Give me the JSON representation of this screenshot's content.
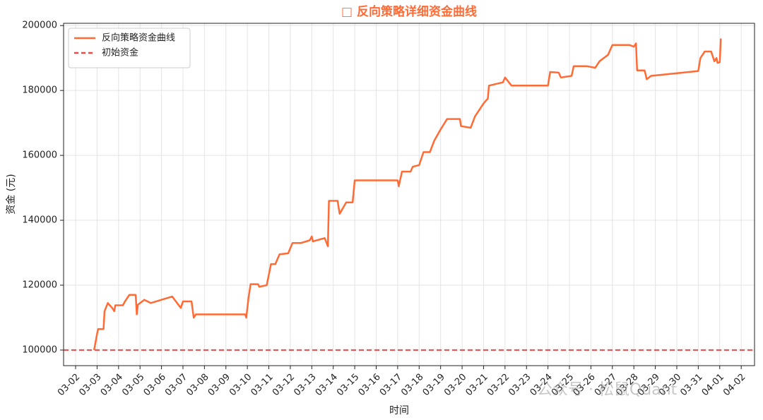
{
  "chart_data": {
    "type": "line",
    "title": "□ 反向策略详细资金曲线",
    "x_label": "时间",
    "y_label": "资金 (元)",
    "watermark": "公众号 · 松鼠Quant",
    "grid": true,
    "legend": "upper left",
    "xlim": [
      1.44,
      33.62
    ],
    "ylim": [
      95200,
      200700
    ],
    "yticks": [
      100000,
      120000,
      140000,
      160000,
      180000,
      200000
    ],
    "xticks": [
      {
        "value": 2,
        "label": "03-02"
      },
      {
        "value": 3,
        "label": "03-03"
      },
      {
        "value": 4,
        "label": "03-04"
      },
      {
        "value": 5,
        "label": "03-05"
      },
      {
        "value": 6,
        "label": "03-06"
      },
      {
        "value": 7,
        "label": "03-07"
      },
      {
        "value": 8,
        "label": "03-08"
      },
      {
        "value": 9,
        "label": "03-09"
      },
      {
        "value": 10,
        "label": "03-10"
      },
      {
        "value": 11,
        "label": "03-11"
      },
      {
        "value": 12,
        "label": "03-12"
      },
      {
        "value": 13,
        "label": "03-13"
      },
      {
        "value": 14,
        "label": "03-14"
      },
      {
        "value": 15,
        "label": "03-15"
      },
      {
        "value": 16,
        "label": "03-16"
      },
      {
        "value": 17,
        "label": "03-17"
      },
      {
        "value": 18,
        "label": "03-18"
      },
      {
        "value": 19,
        "label": "03-19"
      },
      {
        "value": 20,
        "label": "03-20"
      },
      {
        "value": 21,
        "label": "03-21"
      },
      {
        "value": 22,
        "label": "03-22"
      },
      {
        "value": 23,
        "label": "03-23"
      },
      {
        "value": 24,
        "label": "03-24"
      },
      {
        "value": 25,
        "label": "03-25"
      },
      {
        "value": 26,
        "label": "03-26"
      },
      {
        "value": 27,
        "label": "03-27"
      },
      {
        "value": 28,
        "label": "03-28"
      },
      {
        "value": 29,
        "label": "03-29"
      },
      {
        "value": 30,
        "label": "03-30"
      },
      {
        "value": 31,
        "label": "03-31"
      },
      {
        "value": 32,
        "label": "04-01"
      },
      {
        "value": 33,
        "label": "04-02"
      }
    ],
    "series": [
      {
        "name": "反向策略资金曲线",
        "color": "#ff6b35",
        "x": [
          2.86,
          3.0,
          3.05,
          3.3,
          3.35,
          3.5,
          3.7,
          3.8,
          3.85,
          4.2,
          4.3,
          4.5,
          4.8,
          4.85,
          4.9,
          5.2,
          5.5,
          6.0,
          6.5,
          6.9,
          7.0,
          7.4,
          7.5,
          7.6,
          9.9,
          9.95,
          10.05,
          10.15,
          10.5,
          10.55,
          10.9,
          11.1,
          11.3,
          11.5,
          11.9,
          12.1,
          12.5,
          12.9,
          13.0,
          13.05,
          13.6,
          13.75,
          13.8,
          14.2,
          14.3,
          14.6,
          14.9,
          15.0,
          17.0,
          17.05,
          17.2,
          17.6,
          17.7,
          18.0,
          18.2,
          18.5,
          18.7,
          19.0,
          19.3,
          19.9,
          19.95,
          20.4,
          20.6,
          21.0,
          21.2,
          21.25,
          21.9,
          22.0,
          22.3,
          24.0,
          24.1,
          24.5,
          24.6,
          25.1,
          25.2,
          25.8,
          26.2,
          26.4,
          26.8,
          27.0,
          27.8,
          28.0,
          28.1,
          28.15,
          28.5,
          28.6,
          28.8,
          31.0,
          31.1,
          31.3,
          31.6,
          31.75,
          31.85,
          31.9,
          32.0,
          32.05
        ],
        "values": [
          100000,
          105000,
          106500,
          106500,
          112000,
          114500,
          113000,
          112000,
          113800,
          113800,
          115000,
          117000,
          117000,
          111000,
          114000,
          115500,
          114500,
          115500,
          116500,
          113000,
          115000,
          115000,
          110000,
          111000,
          111000,
          110000,
          116000,
          120300,
          120300,
          119500,
          120000,
          126500,
          126500,
          129500,
          129800,
          133000,
          133000,
          133800,
          135000,
          133500,
          134500,
          132000,
          146000,
          146000,
          142000,
          145500,
          145500,
          152300,
          152300,
          150500,
          155000,
          155000,
          156500,
          157000,
          161000,
          161000,
          164500,
          168000,
          171200,
          171200,
          169000,
          168500,
          172000,
          176000,
          177500,
          181500,
          182500,
          184000,
          181500,
          181500,
          185700,
          185500,
          184000,
          184500,
          187500,
          187500,
          187000,
          189000,
          191000,
          194000,
          194000,
          193500,
          194500,
          186200,
          186200,
          183500,
          184500,
          186000,
          190000,
          192000,
          192000,
          189000,
          190000,
          188500,
          188700,
          196000
        ]
      }
    ],
    "reference_lines": [
      {
        "name": "初始资金",
        "value": 100000,
        "color": "#e84a4a"
      }
    ]
  }
}
